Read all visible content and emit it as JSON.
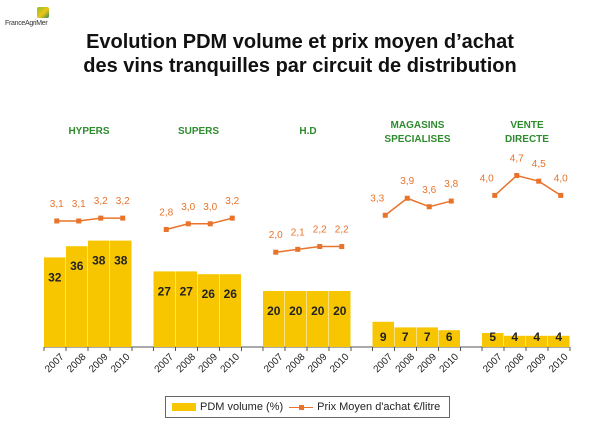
{
  "logo": {
    "text": "FranceAgriMer"
  },
  "chart_data": {
    "type": "bar",
    "title": "Evolution PDM volume et prix moyen d’achat des vins tranquilles par circuit de distribution",
    "title_lines": [
      "Evolution PDM volume et prix moyen d’achat",
      "des vins tranquilles par circuit de distribution"
    ],
    "xlabel": "",
    "ylabel": "",
    "ylim": [
      0,
      40
    ],
    "price_ylim": [
      0,
      5
    ],
    "categories": [
      "2007",
      "2008",
      "2009",
      "2010"
    ],
    "groups": [
      {
        "name": "HYPERS",
        "name_lines": [
          "HYPERS"
        ],
        "pdm": [
          32,
          36,
          38,
          38
        ],
        "prix": [
          3.1,
          3.1,
          3.2,
          3.2
        ],
        "prix_labels": [
          "3,1",
          "3,1",
          "3,2",
          "3,2"
        ]
      },
      {
        "name": "SUPERS",
        "name_lines": [
          "SUPERS"
        ],
        "pdm": [
          27,
          27,
          26,
          26
        ],
        "prix": [
          2.8,
          3.0,
          3.0,
          3.2
        ],
        "prix_labels": [
          "2,8",
          "3,0",
          "3,0",
          "3,2"
        ]
      },
      {
        "name": "H.D",
        "name_lines": [
          "H.D"
        ],
        "pdm": [
          20,
          20,
          20,
          20
        ],
        "prix": [
          2.0,
          2.1,
          2.2,
          2.2
        ],
        "prix_labels": [
          "2,0",
          "2,1",
          "2,2",
          "2,2"
        ]
      },
      {
        "name": "MAGASINS SPECIALISES",
        "name_lines": [
          "MAGASINS",
          "SPECIALISES"
        ],
        "pdm": [
          9,
          7,
          7,
          6
        ],
        "prix": [
          3.3,
          3.9,
          3.6,
          3.8
        ],
        "prix_labels": [
          "3,3",
          "3,9",
          "3,6",
          "3,8"
        ]
      },
      {
        "name": "VENTE DIRECTE",
        "name_lines": [
          "VENTE",
          "DIRECTE"
        ],
        "pdm": [
          5,
          4,
          4,
          4
        ],
        "prix": [
          4.0,
          4.7,
          4.5,
          4.0
        ],
        "prix_labels": [
          "4,0",
          "4,7",
          "4,5",
          "4,0"
        ]
      }
    ],
    "series": [
      {
        "name": "PDM volume (%)",
        "type": "bar",
        "color": "#f7c600"
      },
      {
        "name": "Prix Moyen d'achat €/litre",
        "type": "line",
        "color": "#e8732a"
      }
    ],
    "legend": {
      "position": "bottom-center",
      "entries": [
        "PDM volume (%)",
        "Prix Moyen d'achat €/litre"
      ]
    },
    "grid": false
  }
}
